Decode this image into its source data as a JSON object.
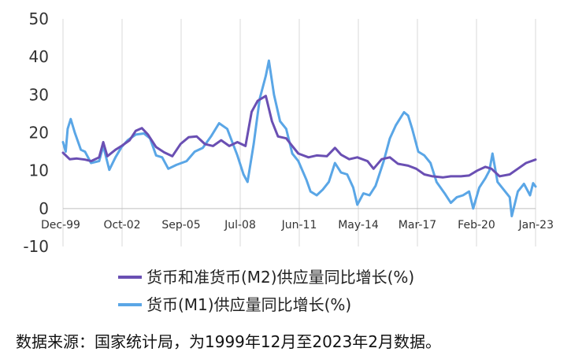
{
  "chart_data": {
    "type": "line",
    "x_tick_labels": [
      "Dec-99",
      "Oct-02",
      "Sep-05",
      "Jul-08",
      "Jun-11",
      "May-14",
      "Mar-17",
      "Feb-20",
      "Jan-23"
    ],
    "y_ticks": [
      "50",
      "40",
      "30",
      "20",
      "10",
      "0",
      "-10"
    ],
    "ylim": [
      -10,
      50
    ],
    "xlim": [
      1999.92,
      2023.17
    ],
    "grid": "vertical",
    "legend_position": "bottom",
    "series": [
      {
        "name": "货币和准货币(M2)供应量同比增长(%)",
        "color": "#6a4fb3",
        "points": [
          [
            1999.92,
            14.7
          ],
          [
            2000.25,
            13.0
          ],
          [
            2000.6,
            13.2
          ],
          [
            2001.0,
            12.9
          ],
          [
            2001.3,
            12.5
          ],
          [
            2001.7,
            13.5
          ],
          [
            2001.9,
            17.5
          ],
          [
            2002.1,
            13.8
          ],
          [
            2002.5,
            15.5
          ],
          [
            2002.8,
            16.5
          ],
          [
            2003.2,
            18.0
          ],
          [
            2003.5,
            20.5
          ],
          [
            2003.8,
            21.2
          ],
          [
            2004.1,
            19.5
          ],
          [
            2004.5,
            16.2
          ],
          [
            2004.9,
            14.8
          ],
          [
            2005.3,
            13.8
          ],
          [
            2005.7,
            17.0
          ],
          [
            2006.1,
            18.8
          ],
          [
            2006.5,
            19.0
          ],
          [
            2006.9,
            17.0
          ],
          [
            2007.3,
            16.5
          ],
          [
            2007.7,
            18.0
          ],
          [
            2008.1,
            16.5
          ],
          [
            2008.5,
            17.5
          ],
          [
            2008.9,
            16.5
          ],
          [
            2009.2,
            25.5
          ],
          [
            2009.5,
            28.4
          ],
          [
            2009.9,
            29.7
          ],
          [
            2010.2,
            23.0
          ],
          [
            2010.5,
            19.0
          ],
          [
            2010.9,
            18.5
          ],
          [
            2011.2,
            16.5
          ],
          [
            2011.5,
            14.5
          ],
          [
            2012.0,
            13.5
          ],
          [
            2012.4,
            14.0
          ],
          [
            2012.9,
            13.8
          ],
          [
            2013.3,
            16.0
          ],
          [
            2013.6,
            14.2
          ],
          [
            2014.0,
            13.0
          ],
          [
            2014.4,
            13.5
          ],
          [
            2014.9,
            12.5
          ],
          [
            2015.2,
            10.5
          ],
          [
            2015.6,
            13.0
          ],
          [
            2016.0,
            13.5
          ],
          [
            2016.4,
            11.8
          ],
          [
            2016.9,
            11.3
          ],
          [
            2017.3,
            10.5
          ],
          [
            2017.7,
            9.0
          ],
          [
            2018.1,
            8.5
          ],
          [
            2018.6,
            8.2
          ],
          [
            2019.0,
            8.5
          ],
          [
            2019.5,
            8.5
          ],
          [
            2019.9,
            8.7
          ],
          [
            2020.3,
            10.0
          ],
          [
            2020.7,
            11.0
          ],
          [
            2021.0,
            10.5
          ],
          [
            2021.4,
            8.5
          ],
          [
            2021.9,
            9.0
          ],
          [
            2022.3,
            10.5
          ],
          [
            2022.7,
            12.0
          ],
          [
            2023.17,
            12.9
          ]
        ]
      },
      {
        "name": "货币(M1)供应量同比增长(%)",
        "color": "#5aa6e6",
        "points": [
          [
            1999.92,
            17.5
          ],
          [
            2000.05,
            15.0
          ],
          [
            2000.15,
            21.0
          ],
          [
            2000.3,
            23.6
          ],
          [
            2000.5,
            20.0
          ],
          [
            2000.8,
            15.5
          ],
          [
            2001.0,
            15.0
          ],
          [
            2001.3,
            12.0
          ],
          [
            2001.7,
            12.5
          ],
          [
            2001.9,
            16.5
          ],
          [
            2002.2,
            10.2
          ],
          [
            2002.5,
            13.5
          ],
          [
            2002.8,
            16.2
          ],
          [
            2003.1,
            18.0
          ],
          [
            2003.5,
            19.5
          ],
          [
            2003.9,
            19.8
          ],
          [
            2004.2,
            18.5
          ],
          [
            2004.5,
            14.0
          ],
          [
            2004.8,
            13.5
          ],
          [
            2005.1,
            10.5
          ],
          [
            2005.5,
            11.5
          ],
          [
            2006.0,
            12.5
          ],
          [
            2006.4,
            15.0
          ],
          [
            2006.8,
            16.0
          ],
          [
            2007.2,
            19.0
          ],
          [
            2007.6,
            22.5
          ],
          [
            2008.0,
            21.0
          ],
          [
            2008.5,
            14.0
          ],
          [
            2008.8,
            9.0
          ],
          [
            2009.0,
            7.0
          ],
          [
            2009.3,
            17.0
          ],
          [
            2009.6,
            29.0
          ],
          [
            2009.9,
            35.0
          ],
          [
            2010.05,
            39.0
          ],
          [
            2010.3,
            30.0
          ],
          [
            2010.6,
            23.0
          ],
          [
            2010.9,
            21.0
          ],
          [
            2011.2,
            14.5
          ],
          [
            2011.5,
            12.5
          ],
          [
            2011.9,
            7.5
          ],
          [
            2012.1,
            4.5
          ],
          [
            2012.4,
            3.5
          ],
          [
            2012.7,
            5.0
          ],
          [
            2013.0,
            7.0
          ],
          [
            2013.3,
            12.0
          ],
          [
            2013.6,
            9.5
          ],
          [
            2013.9,
            9.0
          ],
          [
            2014.2,
            5.5
          ],
          [
            2014.4,
            1.0
          ],
          [
            2014.7,
            4.0
          ],
          [
            2015.0,
            3.5
          ],
          [
            2015.3,
            6.0
          ],
          [
            2015.7,
            12.5
          ],
          [
            2016.0,
            18.5
          ],
          [
            2016.3,
            22.0
          ],
          [
            2016.7,
            25.4
          ],
          [
            2016.9,
            24.5
          ],
          [
            2017.1,
            21.0
          ],
          [
            2017.4,
            15.0
          ],
          [
            2017.7,
            14.0
          ],
          [
            2018.0,
            12.0
          ],
          [
            2018.3,
            7.0
          ],
          [
            2018.7,
            4.0
          ],
          [
            2019.0,
            1.5
          ],
          [
            2019.3,
            3.0
          ],
          [
            2019.6,
            3.5
          ],
          [
            2019.9,
            4.5
          ],
          [
            2020.1,
            0.0
          ],
          [
            2020.4,
            5.5
          ],
          [
            2020.7,
            8.0
          ],
          [
            2020.9,
            10.0
          ],
          [
            2021.05,
            14.5
          ],
          [
            2021.3,
            7.0
          ],
          [
            2021.6,
            5.0
          ],
          [
            2021.9,
            3.0
          ],
          [
            2022.0,
            -2.0
          ],
          [
            2022.3,
            4.5
          ],
          [
            2022.6,
            6.5
          ],
          [
            2022.9,
            3.5
          ],
          [
            2023.05,
            6.7
          ],
          [
            2023.17,
            5.8
          ]
        ]
      }
    ]
  },
  "footer": {
    "source_note": "数据来源：国家统计局，为1999年12月至2023年2月数据。"
  }
}
